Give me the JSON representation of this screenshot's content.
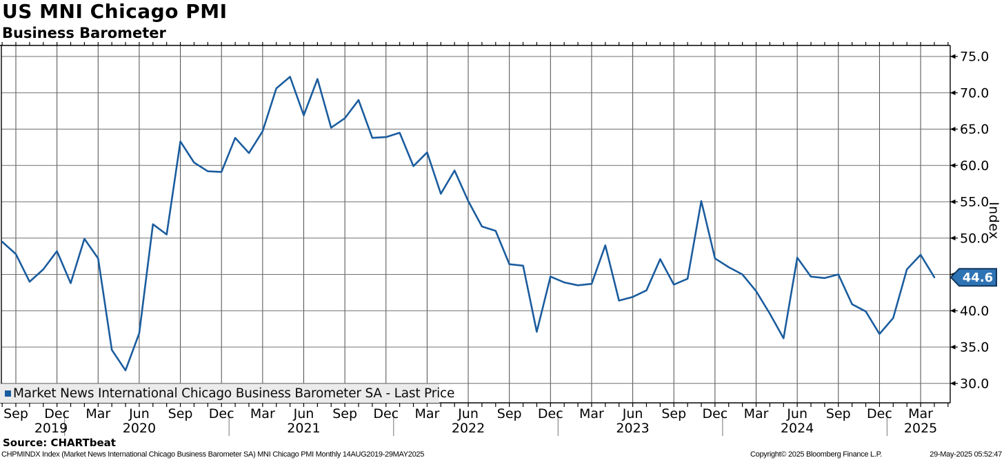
{
  "header": {
    "title": "US MNI Chicago PMI",
    "subtitle": "Business Barometer"
  },
  "colors": {
    "line": "#1a5c9e",
    "badge_fill": "#2e73b4",
    "badge_border": "#10365c",
    "legend_bg": "#ebebeb"
  },
  "legend": {
    "label": "Market News International Chicago Business Barometer SA - Last Price",
    "marker_icon": "blue-square-icon"
  },
  "y_axis": {
    "title": "Index",
    "labels": [
      "75.0",
      "70.0",
      "65.0",
      "60.0",
      "55.0",
      "50.0",
      "45.0",
      "40.0",
      "35.0",
      "30.0"
    ]
  },
  "x_axis": {
    "quarter_labels": [
      "Sep",
      "Dec",
      "Mar",
      "Jun",
      "Sep",
      "Dec",
      "Mar",
      "Jun",
      "Sep",
      "Dec",
      "Mar",
      "Jun",
      "Sep",
      "Dec",
      "Mar",
      "Jun",
      "Sep",
      "Dec",
      "Mar",
      "Jun",
      "Sep",
      "Dec",
      "Mar"
    ],
    "years": [
      "2019",
      "2020",
      "2021",
      "2022",
      "2023",
      "2024",
      "2025"
    ]
  },
  "last_price": {
    "label": "44.6"
  },
  "footer": {
    "source": "Source: CHARTbeat",
    "description": "CHPMINDX Index (Market News International Chicago Business Barometer SA) MNI Chicago PMI  Monthly 14AUG2019-29MAY2025",
    "copyright": "Copyright© 2025 Bloomberg Finance L.P.",
    "timestamp": "29-May-2025 05:52:47"
  },
  "chart_data": {
    "type": "line",
    "title": "US MNI Chicago PMI",
    "subtitle": "Business Barometer",
    "ylabel": "Index",
    "ylim": [
      30,
      75
    ],
    "ytick_step": 5,
    "grid": true,
    "legend_position": "bottom-left",
    "frequency": "Monthly",
    "date_range": "14AUG2019-29MAY2025",
    "last_price": 44.6,
    "series": [
      {
        "name": "Market News International Chicago Business Barometer SA - Last Price",
        "color": "#1a5c9e",
        "x": [
          "2019-08",
          "2019-09",
          "2019-10",
          "2019-11",
          "2019-12",
          "2020-01",
          "2020-02",
          "2020-03",
          "2020-04",
          "2020-05",
          "2020-06",
          "2020-07",
          "2020-08",
          "2020-09",
          "2020-10",
          "2020-11",
          "2020-12",
          "2021-01",
          "2021-02",
          "2021-03",
          "2021-04",
          "2021-05",
          "2021-06",
          "2021-07",
          "2021-08",
          "2021-09",
          "2021-10",
          "2021-11",
          "2021-12",
          "2022-01",
          "2022-02",
          "2022-03",
          "2022-04",
          "2022-05",
          "2022-06",
          "2022-07",
          "2022-08",
          "2022-09",
          "2022-10",
          "2022-11",
          "2022-12",
          "2023-01",
          "2023-02",
          "2023-03",
          "2023-04",
          "2023-05",
          "2023-06",
          "2023-07",
          "2023-08",
          "2023-09",
          "2023-10",
          "2023-11",
          "2023-12",
          "2024-01",
          "2024-02",
          "2024-03",
          "2024-04",
          "2024-05",
          "2024-06",
          "2024-07",
          "2024-08",
          "2024-09",
          "2024-10",
          "2024-11",
          "2024-12",
          "2025-01",
          "2025-02",
          "2025-03",
          "2025-04"
        ],
        "values": [
          49.5,
          47.8,
          44.0,
          45.7,
          48.2,
          43.8,
          49.9,
          47.2,
          34.6,
          31.8,
          36.9,
          51.9,
          50.5,
          63.3,
          60.4,
          59.2,
          59.1,
          63.8,
          61.7,
          64.7,
          70.6,
          72.2,
          66.9,
          71.9,
          65.2,
          66.5,
          69.0,
          63.8,
          63.9,
          64.5,
          59.9,
          61.8,
          56.1,
          59.3,
          55.1,
          51.6,
          51.0,
          46.4,
          46.2,
          37.1,
          44.7,
          43.9,
          43.5,
          43.7,
          49.0,
          41.4,
          41.9,
          42.8,
          47.1,
          43.6,
          44.4,
          55.1,
          47.2,
          46.0,
          45.0,
          42.7,
          39.6,
          36.2,
          47.3,
          44.7,
          44.5,
          45.0,
          40.9,
          39.9,
          36.8,
          39.0,
          45.7,
          47.7,
          44.6
        ]
      }
    ]
  }
}
